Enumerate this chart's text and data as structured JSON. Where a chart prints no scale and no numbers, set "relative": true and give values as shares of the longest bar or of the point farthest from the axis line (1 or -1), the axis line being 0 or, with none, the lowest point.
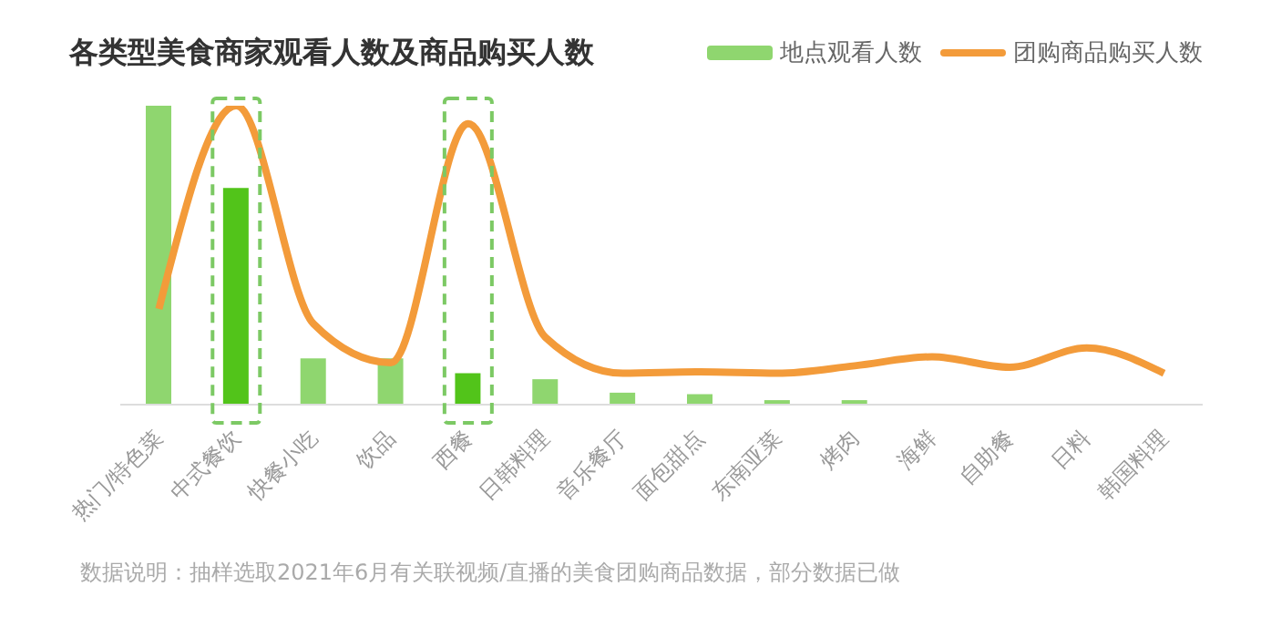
{
  "chart_data": {
    "type": "bar",
    "title": "各类型美食商家观看人数及商品购买人数",
    "relative": true,
    "legend": "top right",
    "categories": [
      "热门/特色菜",
      "中式餐饮",
      "快餐小吃",
      "饮品",
      "西餐",
      "日韩料理",
      "音乐餐厅",
      "面包甜点",
      "东南亚菜",
      "烤肉",
      "海鲜",
      "自助餐",
      "日料",
      "韩国料理"
    ],
    "series": [
      {
        "name": "地点观看人数",
        "color": "#8fd66f",
        "colors": [
          "#8fd66f",
          "#52c41a",
          "#8fd66f",
          "#8fd66f",
          "#52c41a",
          "#8fd66f",
          "#8fd66f",
          "#8fd66f",
          "#8fd66f",
          "#8fd66f",
          "#8fd66f",
          "#8fd66f",
          "#8fd66f",
          "#8fd66f"
        ],
        "values": [
          1,
          0.725,
          0.155,
          0.155,
          0.105,
          0.085,
          0.04,
          0.035,
          0.015,
          0.015,
          0,
          0,
          0,
          0
        ]
      },
      {
        "name": "团购商品购买人数",
        "type": "line",
        "color": "#f39b3a",
        "values": [
          0.32,
          1,
          0.27,
          0.14,
          0.94,
          0.225,
          0.105,
          0.11,
          0.105,
          0.13,
          0.16,
          0.125,
          0.19,
          0.105
        ]
      }
    ],
    "annotations": [
      "数据说明：抽样选取2021年6月有关联视频/直播的美食团购商品数据，部分数据已做"
    ]
  }
}
